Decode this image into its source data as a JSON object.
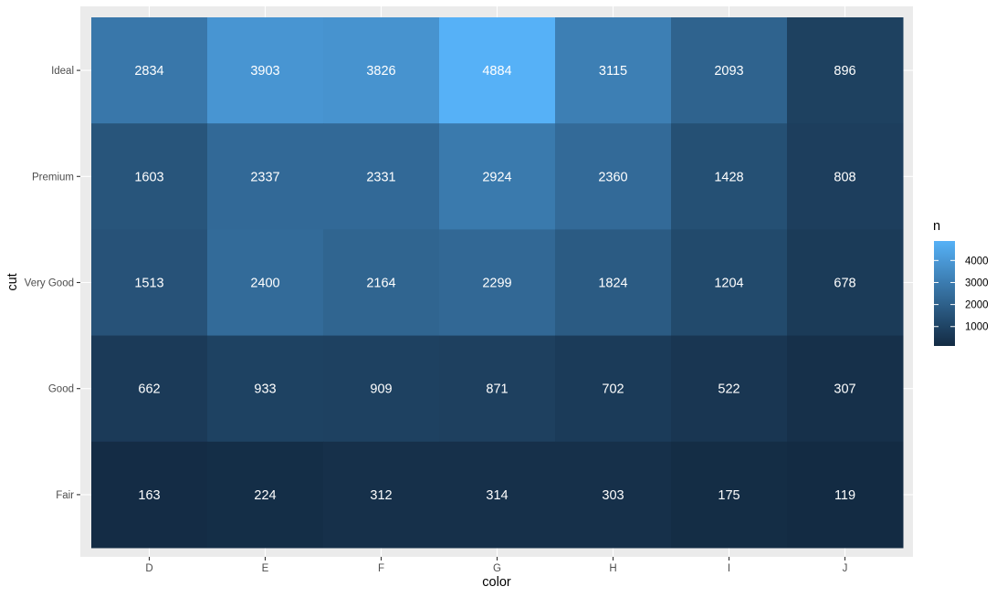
{
  "chart_data": {
    "type": "heatmap",
    "title": "",
    "xlabel": "color",
    "ylabel": "cut",
    "x_categories": [
      "D",
      "E",
      "F",
      "G",
      "H",
      "I",
      "J"
    ],
    "y_categories": [
      "Ideal",
      "Premium",
      "Very Good",
      "Good",
      "Fair"
    ],
    "values": [
      [
        2834,
        3903,
        3826,
        4884,
        3115,
        2093,
        896
      ],
      [
        1603,
        2337,
        2331,
        2924,
        2360,
        1428,
        808
      ],
      [
        1513,
        2400,
        2164,
        2299,
        1824,
        1204,
        678
      ],
      [
        662,
        933,
        909,
        871,
        702,
        522,
        307
      ],
      [
        163,
        224,
        312,
        314,
        303,
        175,
        119
      ]
    ],
    "color_scale": {
      "low": "#132B43",
      "high": "#56B1F7",
      "min": 119,
      "max": 4884
    },
    "legend": {
      "title": "n",
      "placement": "right",
      "breaks": [
        1000,
        2000,
        3000,
        4000
      ],
      "labels": [
        "1000",
        "2000",
        "3000",
        "4000"
      ]
    },
    "panel_background": "#EBEBEB",
    "grid": true
  }
}
